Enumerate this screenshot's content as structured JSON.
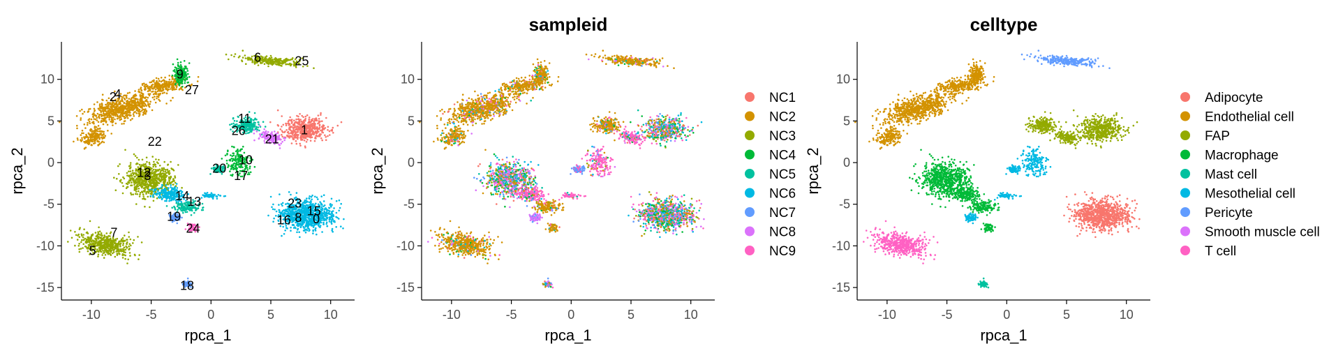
{
  "chart_data": [
    {
      "type": "scatter",
      "title": "",
      "xlabel": "rpca_1",
      "ylabel": "rpca_2",
      "xlim": [
        -12.5,
        12
      ],
      "ylim": [
        -16.5,
        14.5
      ],
      "xticks": [
        -10,
        -5,
        0,
        5,
        10
      ],
      "yticks": [
        -15,
        -10,
        -5,
        0,
        5,
        10
      ],
      "tick_labels_x": [
        "-10",
        "-5",
        "0",
        "5",
        "10"
      ],
      "tick_labels_y": [
        "-15",
        "-10",
        "-5",
        "0",
        "5",
        "10"
      ],
      "legend": null,
      "cluster_labels": [
        {
          "label": "0",
          "x": 8.8,
          "y": -6.8
        },
        {
          "label": "1",
          "x": 7.8,
          "y": 3.9
        },
        {
          "label": "2",
          "x": -8.2,
          "y": 7.9
        },
        {
          "label": "3",
          "x": -5.3,
          "y": -1.6
        },
        {
          "label": "4",
          "x": -7.8,
          "y": 8.2
        },
        {
          "label": "5",
          "x": -9.9,
          "y": -10.6
        },
        {
          "label": "6",
          "x": 3.9,
          "y": 12.6
        },
        {
          "label": "7",
          "x": -8.1,
          "y": -8.4
        },
        {
          "label": "8",
          "x": 7.3,
          "y": -6.6
        },
        {
          "label": "9",
          "x": -2.6,
          "y": 10.6
        },
        {
          "label": "10",
          "x": 2.9,
          "y": 0.3
        },
        {
          "label": "11",
          "x": 2.8,
          "y": 5.3
        },
        {
          "label": "12",
          "x": -5.6,
          "y": -1.2
        },
        {
          "label": "13",
          "x": -1.4,
          "y": -4.7
        },
        {
          "label": "14",
          "x": -2.4,
          "y": -4.0
        },
        {
          "label": "15",
          "x": 8.6,
          "y": -5.8
        },
        {
          "label": "16",
          "x": 6.1,
          "y": -6.9
        },
        {
          "label": "17",
          "x": 2.5,
          "y": -1.6
        },
        {
          "label": "18",
          "x": -2.0,
          "y": -14.8
        },
        {
          "label": "19",
          "x": -3.1,
          "y": -6.5
        },
        {
          "label": "20",
          "x": 0.7,
          "y": -0.7
        },
        {
          "label": "21",
          "x": 5.1,
          "y": 2.8
        },
        {
          "label": "22",
          "x": -4.7,
          "y": 2.5
        },
        {
          "label": "23",
          "x": 7.0,
          "y": -4.9
        },
        {
          "label": "24",
          "x": -1.5,
          "y": -7.9
        },
        {
          "label": "25",
          "x": 7.6,
          "y": 12.2
        },
        {
          "label": "26",
          "x": 2.3,
          "y": 3.8
        },
        {
          "label": "27",
          "x": -1.6,
          "y": 8.7
        }
      ]
    },
    {
      "type": "scatter",
      "title": "sampleid",
      "xlabel": "rpca_1",
      "ylabel": "rpca_2",
      "xlim": [
        -12.5,
        12
      ],
      "ylim": [
        -16.5,
        14.5
      ],
      "xticks": [
        -10,
        -5,
        0,
        5,
        10
      ],
      "yticks": [
        -15,
        -10,
        -5,
        0,
        5,
        10
      ],
      "tick_labels_x": [
        "-10",
        "-5",
        "0",
        "5",
        "10"
      ],
      "tick_labels_y": [
        "-15",
        "-10",
        "-5",
        "0",
        "5",
        "10"
      ],
      "legend": "right",
      "series": [
        {
          "name": "NC1",
          "color": "#F8766D"
        },
        {
          "name": "NC2",
          "color": "#D39200"
        },
        {
          "name": "NC3",
          "color": "#93AA00"
        },
        {
          "name": "NC4",
          "color": "#00BA38"
        },
        {
          "name": "NC5",
          "color": "#00C19F"
        },
        {
          "name": "NC6",
          "color": "#00B9E3"
        },
        {
          "name": "NC7",
          "color": "#619CFF"
        },
        {
          "name": "NC8",
          "color": "#DB72FB"
        },
        {
          "name": "NC9",
          "color": "#FF61C3"
        }
      ]
    },
    {
      "type": "scatter",
      "title": "celltype",
      "xlabel": "rpca_1",
      "ylabel": "rpca_2",
      "xlim": [
        -12.5,
        12
      ],
      "ylim": [
        -16.5,
        14.5
      ],
      "xticks": [
        -10,
        -5,
        0,
        5,
        10
      ],
      "yticks": [
        -15,
        -10,
        -5,
        0,
        5,
        10
      ],
      "tick_labels_x": [
        "-10",
        "-5",
        "0",
        "5",
        "10"
      ],
      "tick_labels_y": [
        "-15",
        "-10",
        "-5",
        "0",
        "5",
        "10"
      ],
      "legend": "right",
      "series": [
        {
          "name": "Adipocyte",
          "color": "#F8766D"
        },
        {
          "name": "Endothelial cell",
          "color": "#D39200"
        },
        {
          "name": "FAP",
          "color": "#93AA00"
        },
        {
          "name": "Macrophage",
          "color": "#00BA38"
        },
        {
          "name": "Mast cell",
          "color": "#00C19F"
        },
        {
          "name": "Mesothelial cell",
          "color": "#00B9E3"
        },
        {
          "name": "Pericyte",
          "color": "#619CFF"
        },
        {
          "name": "Smooth muscle cell",
          "color": "#DB72FB"
        },
        {
          "name": "T cell",
          "color": "#FF61C3"
        }
      ]
    }
  ]
}
